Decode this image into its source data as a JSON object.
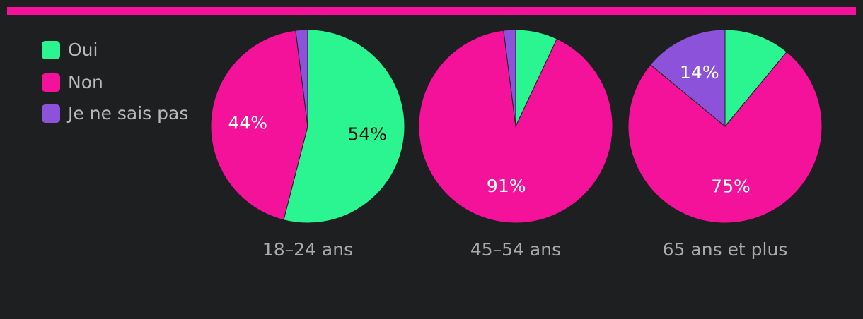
{
  "chart_data": [
    {
      "type": "pie",
      "title": "18–24 ans",
      "categories": [
        "Oui",
        "Non",
        "Je ne sais pas"
      ],
      "colors": [
        "#2af590",
        "#f5129a",
        "#8c52d9"
      ],
      "values": [
        54,
        44,
        2
      ],
      "value_labels": [
        "54%",
        "44%",
        null
      ]
    },
    {
      "type": "pie",
      "title": "45–54 ans",
      "categories": [
        "Oui",
        "Non",
        "Je ne sais pas"
      ],
      "colors": [
        "#2af590",
        "#f5129a",
        "#8c52d9"
      ],
      "values": [
        7,
        91,
        2
      ],
      "value_labels": [
        null,
        "91%",
        null
      ]
    },
    {
      "type": "pie",
      "title": "65 ans et plus",
      "categories": [
        "Oui",
        "Non",
        "Je ne sais pas"
      ],
      "colors": [
        "#2af590",
        "#f5129a",
        "#8c52d9"
      ],
      "values": [
        11,
        75,
        14
      ],
      "value_labels": [
        null,
        "75%",
        "14%"
      ]
    }
  ]
}
